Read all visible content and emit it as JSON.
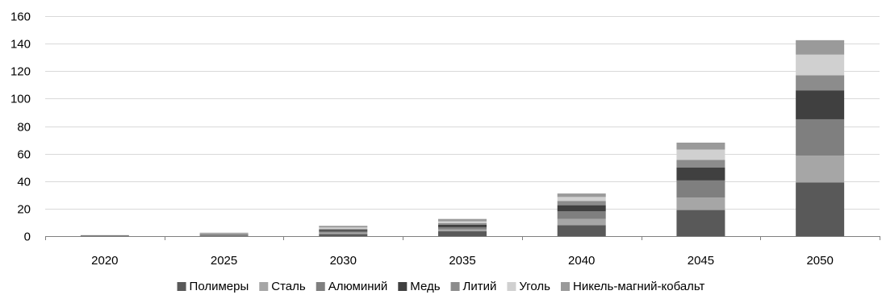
{
  "chart_data": {
    "type": "bar",
    "stacked": true,
    "title": "",
    "xlabel": "",
    "ylabel": "",
    "ylim": [
      0,
      160
    ],
    "y_ticks": [
      0,
      20,
      40,
      60,
      80,
      100,
      120,
      140,
      160
    ],
    "grid": true,
    "legend_position": "bottom",
    "categories": [
      "2020",
      "2025",
      "2030",
      "2035",
      "2040",
      "2045",
      "2050"
    ],
    "series": [
      {
        "name": "Полимеры",
        "color": "#595959",
        "values": [
          0.3,
          0.5,
          1.5,
          3.5,
          8,
          19,
          39
        ]
      },
      {
        "name": "Сталь",
        "color": "#a6a6a6",
        "values": [
          0.1,
          0.4,
          1.0,
          1.5,
          4.5,
          9,
          19.5
        ]
      },
      {
        "name": "Алюминий",
        "color": "#7f7f7f",
        "values": [
          0.1,
          0.4,
          1.0,
          1.5,
          5.5,
          12.5,
          26.5
        ]
      },
      {
        "name": "Медь",
        "color": "#404040",
        "values": [
          0.1,
          0.3,
          1.0,
          1.8,
          4.5,
          9.5,
          21
        ]
      },
      {
        "name": "Литий",
        "color": "#8c8c8c",
        "values": [
          0.05,
          0.2,
          0.8,
          1.2,
          3,
          5.5,
          11
        ]
      },
      {
        "name": "Уголь",
        "color": "#d0d0d0",
        "values": [
          0.05,
          0.2,
          1.0,
          1.3,
          3,
          7.5,
          15
        ]
      },
      {
        "name": "Никель-магний-кобальт",
        "color": "#9a9a9a",
        "values": [
          0.05,
          0.5,
          1.2,
          1.7,
          2.5,
          5,
          10.5
        ]
      }
    ]
  }
}
